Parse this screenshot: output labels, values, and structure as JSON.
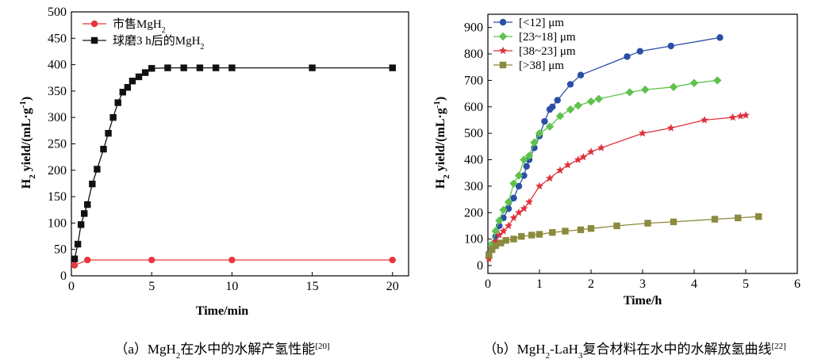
{
  "chart_data": [
    {
      "type": "line",
      "caption": {
        "prefix": "（a）MgH",
        "sub": "2",
        "suffix": "在水中的水解产氢性能",
        "ref": "[20]"
      },
      "xlabel": "Time/min",
      "ylabel": {
        "main": "H",
        "sub": "2",
        "rest": " yield/(mL·g",
        "sup": "-1",
        "end": ")"
      },
      "xlim": [
        0,
        21
      ],
      "ylim": [
        0,
        500
      ],
      "xticks": [
        0,
        5,
        10,
        15,
        20
      ],
      "yticks": [
        0,
        50,
        100,
        150,
        200,
        250,
        300,
        350,
        400,
        450,
        500
      ],
      "series": [
        {
          "name": "市售MgH",
          "name_sub": "2",
          "color": "#e8373f",
          "marker": "circle",
          "x": [
            0.2,
            1,
            5,
            10,
            20
          ],
          "y": [
            20,
            30,
            30,
            30,
            30
          ]
        },
        {
          "name": "球磨3 h后的MgH",
          "name_sub": "2",
          "color": "#111111",
          "marker": "square",
          "x": [
            0.2,
            0.4,
            0.6,
            0.8,
            1.0,
            1.3,
            1.6,
            2.0,
            2.3,
            2.6,
            2.9,
            3.2,
            3.5,
            3.8,
            4.2,
            4.6,
            5.0,
            6.0,
            7.0,
            8.0,
            9.0,
            10.0,
            15.0,
            20.0
          ],
          "y": [
            32,
            60,
            97,
            118,
            135,
            174,
            202,
            240,
            270,
            300,
            328,
            348,
            357,
            369,
            377,
            385,
            393,
            394,
            394,
            394,
            394,
            394,
            394,
            394
          ]
        }
      ]
    },
    {
      "type": "line",
      "caption": {
        "prefix": "（b）MgH",
        "sub": "2",
        "mid": "-LaH",
        "sub2": "3",
        "suffix": "复合材料在水中的水解放氢曲线",
        "ref": "[22]"
      },
      "xlabel": "Time/h",
      "ylabel": {
        "main": "H",
        "sub": "2",
        "rest": " yield/(mL·g",
        "sup": "-1",
        "end": ")"
      },
      "xlim": [
        0,
        6
      ],
      "ylim": [
        -30,
        950
      ],
      "xticks": [
        0,
        1,
        2,
        3,
        4,
        5,
        6
      ],
      "yticks": [
        0,
        100,
        200,
        300,
        400,
        500,
        600,
        700,
        800,
        900
      ],
      "series": [
        {
          "name": "[<12] μm",
          "color": "#2b4fa6",
          "marker": "circle",
          "x": [
            0.02,
            0.08,
            0.15,
            0.22,
            0.3,
            0.4,
            0.5,
            0.6,
            0.7,
            0.75,
            0.8,
            0.9,
            1.0,
            1.1,
            1.2,
            1.25,
            1.35,
            1.6,
            1.8,
            2.7,
            2.95,
            3.55,
            4.5
          ],
          "y": [
            45,
            80,
            110,
            150,
            180,
            215,
            255,
            300,
            340,
            375,
            400,
            445,
            490,
            545,
            590,
            600,
            625,
            685,
            720,
            790,
            810,
            830,
            862
          ]
        },
        {
          "name": "[23~18] μm",
          "color": "#5ec24b",
          "marker": "diamond",
          "x": [
            0.02,
            0.08,
            0.15,
            0.22,
            0.3,
            0.4,
            0.5,
            0.6,
            0.7,
            0.8,
            0.9,
            1.0,
            1.2,
            1.4,
            1.6,
            1.75,
            2.0,
            2.15,
            2.75,
            3.05,
            3.6,
            4.0,
            4.45
          ],
          "y": [
            30,
            80,
            130,
            170,
            210,
            240,
            310,
            340,
            400,
            415,
            465,
            500,
            525,
            565,
            590,
            605,
            620,
            630,
            655,
            665,
            675,
            690,
            700
          ]
        },
        {
          "name": "[38~23] μm",
          "color": "#e0313c",
          "marker": "star",
          "x": [
            0.02,
            0.08,
            0.15,
            0.22,
            0.3,
            0.4,
            0.5,
            0.6,
            0.7,
            0.8,
            1.0,
            1.2,
            1.4,
            1.55,
            1.75,
            1.85,
            2.0,
            2.2,
            3.0,
            3.55,
            4.2,
            4.75,
            4.9,
            5.0
          ],
          "y": [
            25,
            60,
            90,
            115,
            130,
            150,
            180,
            200,
            215,
            240,
            300,
            330,
            360,
            380,
            400,
            410,
            430,
            445,
            500,
            520,
            550,
            560,
            565,
            568
          ]
        },
        {
          "name": "[>38] μm",
          "color": "#8b8a3e",
          "marker": "square",
          "x": [
            0.02,
            0.08,
            0.15,
            0.25,
            0.35,
            0.5,
            0.65,
            0.85,
            1.0,
            1.25,
            1.5,
            1.8,
            2.0,
            2.5,
            3.1,
            3.6,
            4.4,
            4.85,
            5.25
          ],
          "y": [
            40,
            60,
            75,
            85,
            95,
            100,
            110,
            115,
            118,
            125,
            130,
            135,
            140,
            150,
            160,
            165,
            175,
            180,
            185
          ]
        }
      ]
    }
  ]
}
